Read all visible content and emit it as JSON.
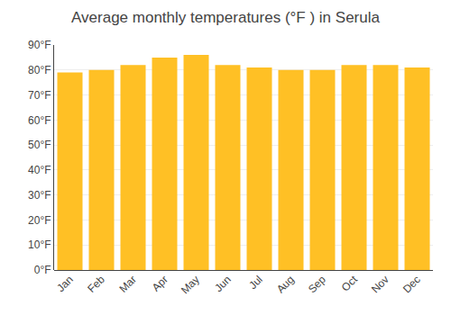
{
  "chart_data": {
    "type": "bar",
    "title": "Average monthly temperatures (°F ) in Serula",
    "categories": [
      "Jan",
      "Feb",
      "Mar",
      "Apr",
      "May",
      "Jun",
      "Jul",
      "Aug",
      "Sep",
      "Oct",
      "Nov",
      "Dec"
    ],
    "values": [
      79,
      80,
      82,
      85,
      86,
      82,
      81,
      80,
      80,
      82,
      82,
      81
    ],
    "color": "#FFC025",
    "ylim": [
      0,
      90
    ],
    "yticks": [
      {
        "value": 0,
        "label": "0°F"
      },
      {
        "value": 10,
        "label": "10°F"
      },
      {
        "value": 20,
        "label": "20°F"
      },
      {
        "value": 30,
        "label": "30°F"
      },
      {
        "value": 40,
        "label": "40°F"
      },
      {
        "value": 50,
        "label": "50°F"
      },
      {
        "value": 60,
        "label": "60°F"
      },
      {
        "value": 70,
        "label": "70°F"
      },
      {
        "value": 80,
        "label": "80°F"
      },
      {
        "value": 90,
        "label": "90°F"
      }
    ],
    "grid": true
  }
}
